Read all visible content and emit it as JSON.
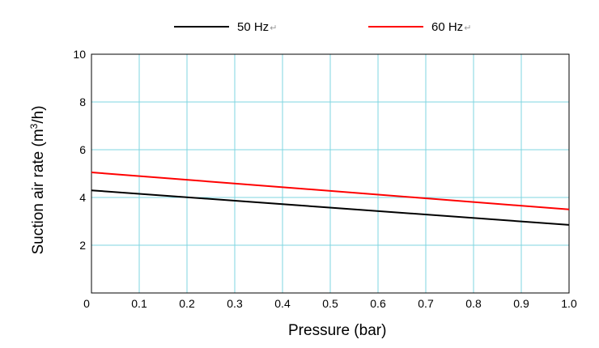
{
  "chart_data": {
    "type": "line",
    "xlabel": "Pressure (bar)",
    "ylabel_prefix": "Suction air rate (m",
    "ylabel_sup": "3",
    "ylabel_suffix": "/h)",
    "xlim": [
      0,
      1.0
    ],
    "ylim": [
      0,
      10
    ],
    "x_ticks": [
      "0",
      "0.1",
      "0.2",
      "0.3",
      "0.4",
      "0.5",
      "0.6",
      "0.7",
      "0.8",
      "0.9",
      "1.0"
    ],
    "y_ticks": [
      "2",
      "4",
      "6",
      "8",
      "10"
    ],
    "grid": true,
    "legend_placement": "top",
    "series": [
      {
        "name": "50 Hz",
        "color": "#000000",
        "x": [
          0,
          1.0
        ],
        "y": [
          4.3,
          2.85
        ]
      },
      {
        "name": "60 Hz",
        "color": "#ff0000",
        "x": [
          0,
          1.0
        ],
        "y": [
          5.05,
          3.5
        ]
      }
    ],
    "legend_marks": [
      "↵",
      "↵"
    ]
  }
}
